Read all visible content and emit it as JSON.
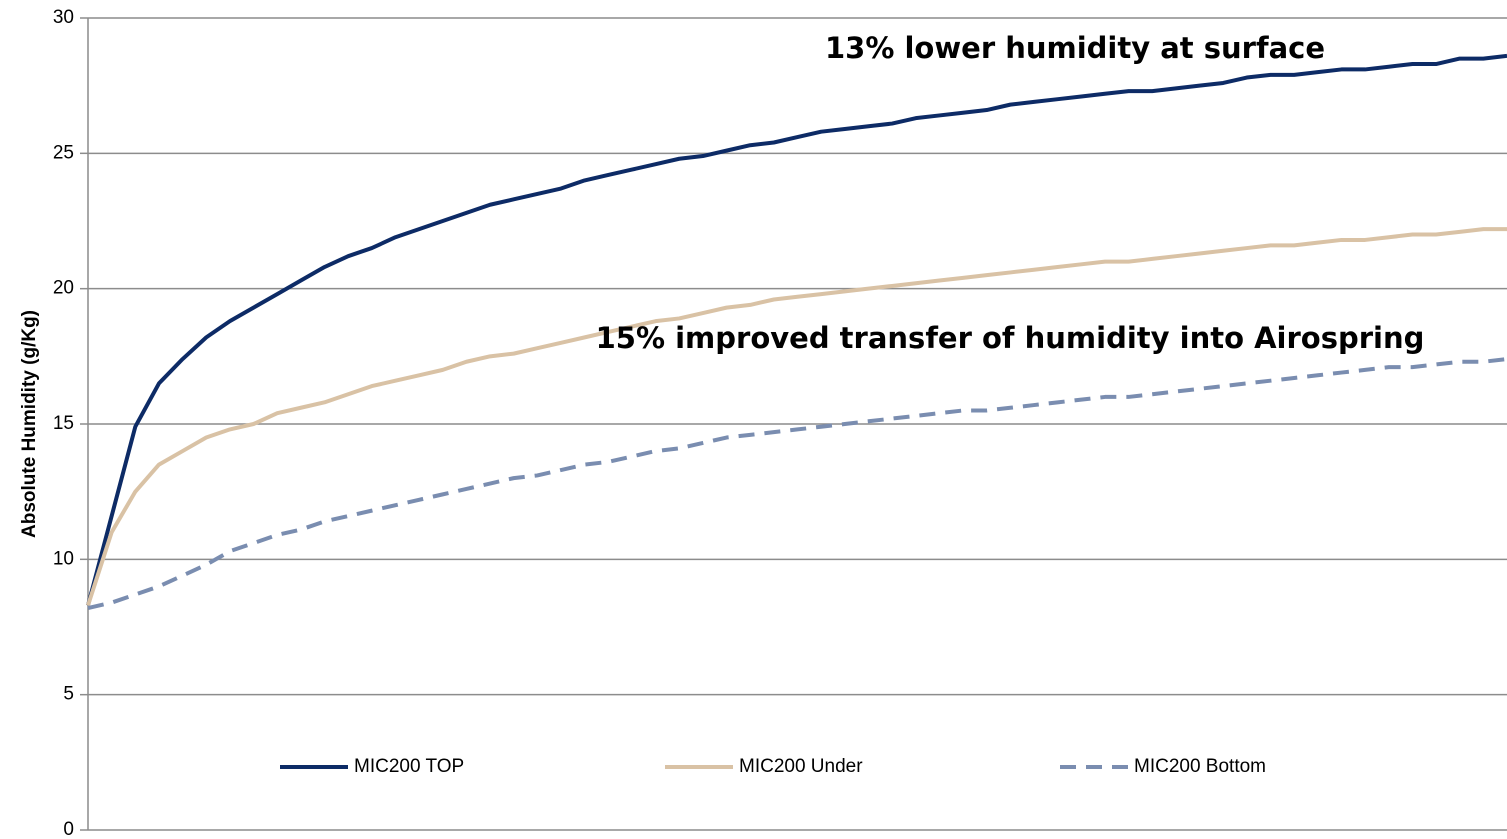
{
  "chart_data": {
    "type": "line",
    "y_label": "Absolute Humidity (g/Kg)",
    "annotations": [
      "13% lower humidity at surface",
      "15% improved transfer of humidity into Airospring"
    ],
    "ylim": [
      0,
      30
    ],
    "yticks": [
      0,
      5,
      10,
      15,
      20,
      25,
      30
    ],
    "grid": true,
    "legend": "bottom",
    "series": [
      {
        "name": "MIC200 TOP",
        "color": "#0d2b66",
        "dash": false,
        "values": [
          8.3,
          11.6,
          14.9,
          16.5,
          17.4,
          18.2,
          18.8,
          19.3,
          19.8,
          20.3,
          20.8,
          21.2,
          21.5,
          21.9,
          22.2,
          22.5,
          22.8,
          23.1,
          23.3,
          23.5,
          23.7,
          24.0,
          24.2,
          24.4,
          24.6,
          24.8,
          24.9,
          25.1,
          25.3,
          25.4,
          25.6,
          25.8,
          25.9,
          26.0,
          26.1,
          26.3,
          26.4,
          26.5,
          26.6,
          26.8,
          26.9,
          27.0,
          27.1,
          27.2,
          27.3,
          27.3,
          27.4,
          27.5,
          27.6,
          27.8,
          27.9,
          27.9,
          28.0,
          28.1,
          28.1,
          28.2,
          28.3,
          28.3,
          28.5,
          28.5,
          28.6
        ]
      },
      {
        "name": "MIC200 Under",
        "color": "#d9c2a5",
        "dash": false,
        "values": [
          8.3,
          11.0,
          12.5,
          13.5,
          14.0,
          14.5,
          14.8,
          15.0,
          15.4,
          15.6,
          15.8,
          16.1,
          16.4,
          16.6,
          16.8,
          17.0,
          17.3,
          17.5,
          17.6,
          17.8,
          18.0,
          18.2,
          18.4,
          18.6,
          18.8,
          18.9,
          19.1,
          19.3,
          19.4,
          19.6,
          19.7,
          19.8,
          19.9,
          20.0,
          20.1,
          20.2,
          20.3,
          20.4,
          20.5,
          20.6,
          20.7,
          20.8,
          20.9,
          21.0,
          21.0,
          21.1,
          21.2,
          21.3,
          21.4,
          21.5,
          21.6,
          21.6,
          21.7,
          21.8,
          21.8,
          21.9,
          22.0,
          22.0,
          22.1,
          22.2,
          22.2
        ]
      },
      {
        "name": "MIC200 Bottom",
        "color": "#7a8db0",
        "dash": true,
        "values": [
          8.2,
          8.4,
          8.7,
          9.0,
          9.4,
          9.8,
          10.3,
          10.6,
          10.9,
          11.1,
          11.4,
          11.6,
          11.8,
          12.0,
          12.2,
          12.4,
          12.6,
          12.8,
          13.0,
          13.1,
          13.3,
          13.5,
          13.6,
          13.8,
          14.0,
          14.1,
          14.3,
          14.5,
          14.6,
          14.7,
          14.8,
          14.9,
          15.0,
          15.1,
          15.2,
          15.3,
          15.4,
          15.5,
          15.5,
          15.6,
          15.7,
          15.8,
          15.9,
          16.0,
          16.0,
          16.1,
          16.2,
          16.3,
          16.4,
          16.5,
          16.6,
          16.7,
          16.8,
          16.9,
          17.0,
          17.1,
          17.1,
          17.2,
          17.3,
          17.3,
          17.4
        ]
      }
    ]
  }
}
